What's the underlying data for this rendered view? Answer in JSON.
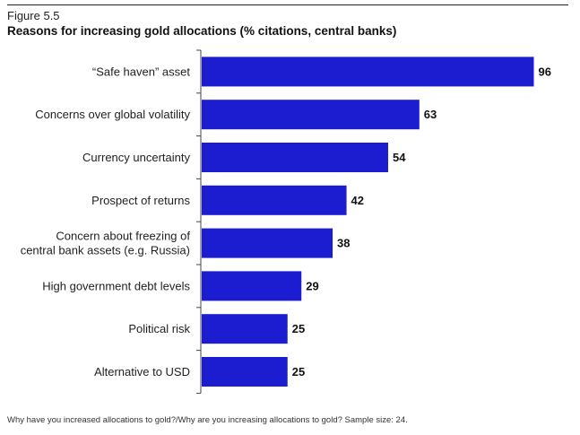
{
  "figure": {
    "label": "Figure 5.5",
    "title": "Reasons for increasing gold allocations (% citations, central banks)",
    "footnote": "Why have you increased allocations to gold?/Why are you increasing allocations to gold? Sample size: 24."
  },
  "colors": {
    "bar": "#1c1cd1",
    "axis": "#444444"
  },
  "chart_data": {
    "type": "bar",
    "orientation": "horizontal",
    "title": "Reasons for increasing gold allocations (% citations, central banks)",
    "categories": [
      [
        "“Safe haven” asset"
      ],
      [
        "Concerns over global volatility"
      ],
      [
        "Currency uncertainty"
      ],
      [
        "Prospect of returns"
      ],
      [
        "Concern about freezing of",
        "central bank assets (e.g. Russia)"
      ],
      [
        "High government debt levels"
      ],
      [
        "Political risk"
      ],
      [
        "Alternative to USD"
      ]
    ],
    "values": [
      96,
      63,
      54,
      42,
      38,
      29,
      25,
      25
    ],
    "value_labels": [
      "96",
      "63",
      "54",
      "42",
      "38",
      "29",
      "25",
      "25"
    ],
    "xlim": [
      0,
      100
    ],
    "grid": false,
    "legend": "none"
  }
}
